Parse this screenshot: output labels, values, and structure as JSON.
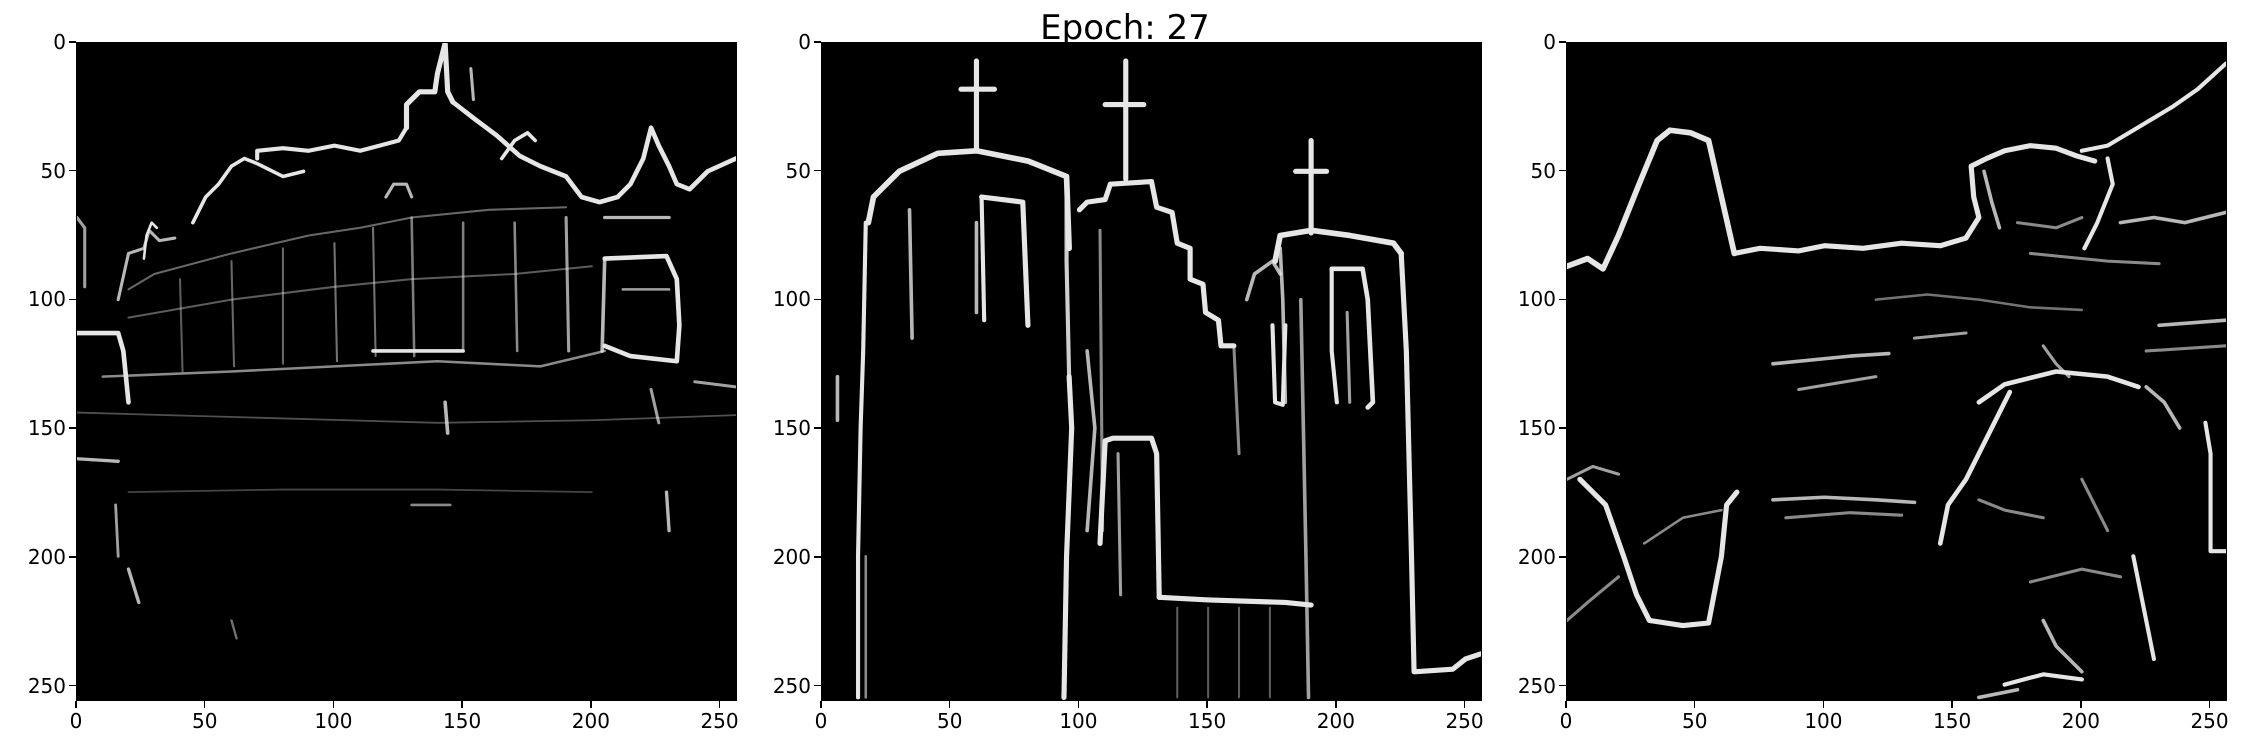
{
  "figure": {
    "title": "Epoch: 27",
    "background": "#ffffff",
    "image_background": "#000000",
    "edge_color": "#e6e6e6"
  },
  "panels": [
    {
      "name": "panel-1",
      "depicts": "building-edge-map",
      "x_ticks": [
        "0",
        "50",
        "100",
        "150",
        "200",
        "250"
      ],
      "y_ticks": [
        "0",
        "50",
        "100",
        "150",
        "200",
        "250"
      ]
    },
    {
      "name": "panel-2",
      "depicts": "church-edge-map",
      "x_ticks": [
        "0",
        "50",
        "100",
        "150",
        "200",
        "250"
      ],
      "y_ticks": [
        "0",
        "50",
        "100",
        "150",
        "200",
        "250"
      ]
    },
    {
      "name": "panel-3",
      "depicts": "landscape-edge-map",
      "x_ticks": [
        "0",
        "50",
        "100",
        "150",
        "200",
        "250"
      ],
      "y_ticks": [
        "0",
        "50",
        "100",
        "150",
        "200",
        "250"
      ]
    }
  ]
}
